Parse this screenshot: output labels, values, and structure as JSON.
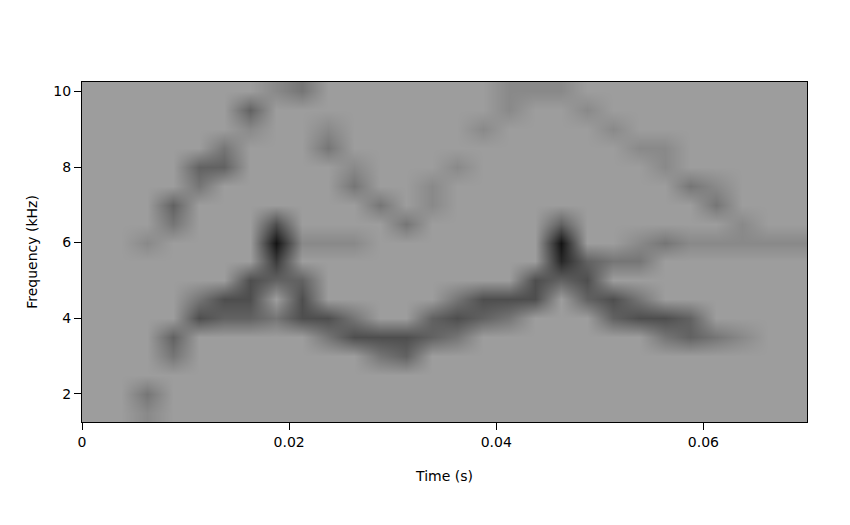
{
  "chart_data": {
    "type": "heatmap",
    "xlabel": "Time (s)",
    "ylabel": "Frequency (kHz)",
    "x": [
      0.00125,
      0.00375,
      0.00625,
      0.00875,
      0.01125,
      0.01375,
      0.01625,
      0.01875,
      0.02125,
      0.02375,
      0.02625,
      0.02875,
      0.03125,
      0.03375,
      0.03625,
      0.03875,
      0.04125,
      0.04375,
      0.04625,
      0.04875,
      0.05125,
      0.05375,
      0.05625,
      0.05875,
      0.06125,
      0.06375,
      0.06625,
      0.06875
    ],
    "y": [
      1.5,
      2.0,
      2.5,
      3.0,
      3.5,
      4.0,
      4.5,
      5.0,
      5.5,
      6.0,
      6.5,
      7.0,
      7.5,
      8.0,
      8.5,
      9.0,
      9.5,
      10.0
    ],
    "z": [
      [
        2,
        2,
        3,
        2,
        2,
        2,
        2,
        2,
        2,
        2,
        2,
        2,
        2,
        2,
        2,
        2,
        2,
        2,
        2,
        2,
        2,
        2,
        2,
        2,
        2,
        2,
        2,
        2
      ],
      [
        2,
        2,
        4,
        2,
        2,
        2,
        2,
        2,
        2,
        2,
        2,
        2,
        2,
        2,
        2,
        2,
        2,
        2,
        2,
        2,
        2,
        2,
        2,
        2,
        2,
        2,
        2,
        2
      ],
      [
        2,
        2,
        2,
        2,
        2,
        2,
        2,
        2,
        2,
        2,
        2,
        2,
        2,
        2,
        2,
        2,
        2,
        2,
        2,
        2,
        2,
        2,
        2,
        2,
        2,
        2,
        2,
        2
      ],
      [
        2,
        2,
        2,
        4,
        2,
        2,
        2,
        2,
        2,
        2,
        2,
        4,
        5,
        2,
        2,
        2,
        2,
        2,
        2,
        2,
        2,
        2,
        2,
        2,
        2,
        2,
        2,
        2
      ],
      [
        2,
        2,
        2,
        5,
        2,
        2,
        2,
        2,
        2,
        4,
        6,
        6,
        6,
        5,
        4,
        2,
        2,
        2,
        2,
        2,
        2,
        2,
        4,
        5,
        4,
        3,
        2,
        2
      ],
      [
        2,
        2,
        2,
        2,
        6,
        5,
        5,
        4,
        6,
        6,
        4,
        2,
        2,
        5,
        6,
        5,
        4,
        2,
        2,
        2,
        5,
        6,
        6,
        5,
        2,
        2,
        2,
        2
      ],
      [
        2,
        2,
        2,
        2,
        4,
        6,
        6,
        2,
        6,
        2,
        2,
        2,
        2,
        2,
        4,
        6,
        6,
        6,
        2,
        5,
        6,
        4,
        2,
        2,
        2,
        2,
        2,
        2
      ],
      [
        2,
        2,
        2,
        2,
        2,
        2,
        6,
        5,
        5,
        2,
        2,
        2,
        2,
        2,
        2,
        2,
        2,
        6,
        5,
        6,
        2,
        2,
        2,
        2,
        2,
        2,
        2,
        2
      ],
      [
        2,
        2,
        2,
        2,
        2,
        2,
        2,
        7,
        2,
        2,
        2,
        2,
        2,
        2,
        2,
        2,
        2,
        2,
        8,
        5,
        4,
        4,
        2,
        2,
        2,
        2,
        2,
        2
      ],
      [
        2,
        2,
        3,
        2,
        2,
        2,
        2,
        9,
        3,
        3,
        3,
        2,
        2,
        2,
        2,
        2,
        2,
        2,
        9,
        2,
        2,
        3,
        4,
        3,
        3,
        3,
        3,
        3
      ],
      [
        2,
        2,
        2,
        4,
        2,
        2,
        2,
        6,
        2,
        2,
        2,
        2,
        4,
        2,
        2,
        2,
        2,
        2,
        5,
        2,
        2,
        2,
        2,
        2,
        2,
        3,
        2,
        2
      ],
      [
        2,
        2,
        2,
        5,
        2,
        2,
        2,
        2,
        2,
        2,
        2,
        4,
        2,
        3,
        2,
        2,
        2,
        2,
        2,
        2,
        2,
        2,
        2,
        2,
        4,
        2,
        2,
        2
      ],
      [
        2,
        2,
        2,
        2,
        4,
        2,
        2,
        2,
        2,
        2,
        4,
        2,
        2,
        3,
        2,
        2,
        2,
        2,
        2,
        2,
        2,
        2,
        2,
        4,
        3,
        2,
        2,
        2
      ],
      [
        2,
        2,
        2,
        2,
        5,
        5,
        2,
        2,
        2,
        2,
        3,
        2,
        2,
        2,
        3,
        2,
        2,
        2,
        2,
        2,
        2,
        2,
        3,
        2,
        2,
        2,
        2,
        2
      ],
      [
        2,
        2,
        2,
        2,
        2,
        4,
        2,
        2,
        2,
        4,
        2,
        2,
        2,
        2,
        2,
        2,
        2,
        2,
        2,
        2,
        2,
        3,
        3,
        2,
        2,
        2,
        2,
        2
      ],
      [
        2,
        2,
        2,
        2,
        2,
        2,
        3,
        2,
        2,
        3,
        2,
        2,
        2,
        2,
        2,
        3,
        2,
        2,
        2,
        2,
        3,
        2,
        2,
        2,
        2,
        2,
        2,
        2
      ],
      [
        2,
        2,
        2,
        2,
        2,
        2,
        5,
        2,
        2,
        2,
        2,
        2,
        2,
        2,
        2,
        2,
        3,
        2,
        2,
        3,
        2,
        2,
        2,
        2,
        2,
        2,
        2,
        2
      ],
      [
        2,
        2,
        2,
        2,
        2,
        2,
        2,
        3,
        4,
        2,
        2,
        2,
        2,
        2,
        2,
        2,
        3,
        3,
        3,
        2,
        2,
        2,
        2,
        2,
        2,
        2,
        2,
        2
      ]
    ],
    "zlim": [
      0,
      10
    ],
    "xlim": [
      0,
      0.07
    ],
    "ylim": [
      1.25,
      10.25
    ],
    "xticks": [
      0,
      0.02,
      0.04,
      0.06
    ],
    "yticks": [
      2,
      4,
      6,
      8,
      10
    ],
    "grid": false
  }
}
